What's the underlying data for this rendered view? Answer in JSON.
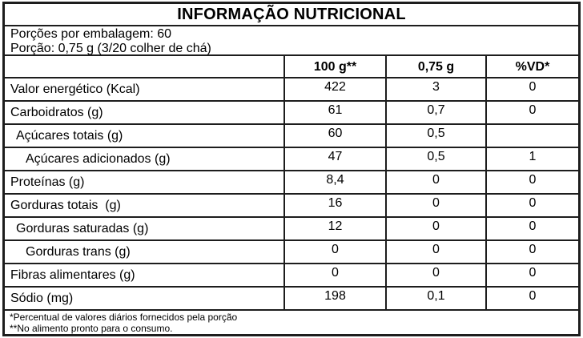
{
  "label": {
    "title": "INFORMAÇÃO NUTRICIONAL",
    "servings_line": "Porções por embalagem: 60",
    "portion_line": "Porção: 0,75 g (3/20 colher de chá)",
    "columns": [
      "100 g**",
      "0,75 g",
      "%VD*"
    ],
    "rows": [
      {
        "name": "Valor energético (Kcal)",
        "indent": 0,
        "per_100g": "422",
        "per_portion": "3",
        "vd_percent": "0"
      },
      {
        "name": "Carboidratos (g)",
        "indent": 0,
        "per_100g": "61",
        "per_portion": "0,7",
        "vd_percent": "0"
      },
      {
        "name": "Açúcares totais (g)",
        "indent": 1,
        "per_100g": "60",
        "per_portion": "0,5",
        "vd_percent": ""
      },
      {
        "name": "Açúcares adicionados (g)",
        "indent": 2,
        "per_100g": "47",
        "per_portion": "0,5",
        "vd_percent": "1"
      },
      {
        "name": "Proteínas (g)",
        "indent": 0,
        "per_100g": "8,4",
        "per_portion": "0",
        "vd_percent": "0"
      },
      {
        "name": "Gorduras totais  (g)",
        "indent": 0,
        "per_100g": "16",
        "per_portion": "0",
        "vd_percent": "0"
      },
      {
        "name": "Gorduras saturadas (g)",
        "indent": 1,
        "per_100g": "12",
        "per_portion": "0",
        "vd_percent": "0"
      },
      {
        "name": "Gorduras trans (g)",
        "indent": 2,
        "per_100g": "0",
        "per_portion": "0",
        "vd_percent": "0"
      },
      {
        "name": "Fibras alimentares (g)",
        "indent": 0,
        "per_100g": "0",
        "per_portion": "0",
        "vd_percent": "0"
      },
      {
        "name": "Sódio (mg)",
        "indent": 0,
        "per_100g": "198",
        "per_portion": "0,1",
        "vd_percent": "0"
      }
    ],
    "footnotes": [
      "*Percentual de valores diários fornecidos pela porção",
      "**No alimento pronto para o consumo."
    ],
    "colors": {
      "border": "#1d1d1d",
      "text": "#000000",
      "background": "#ffffff"
    }
  }
}
